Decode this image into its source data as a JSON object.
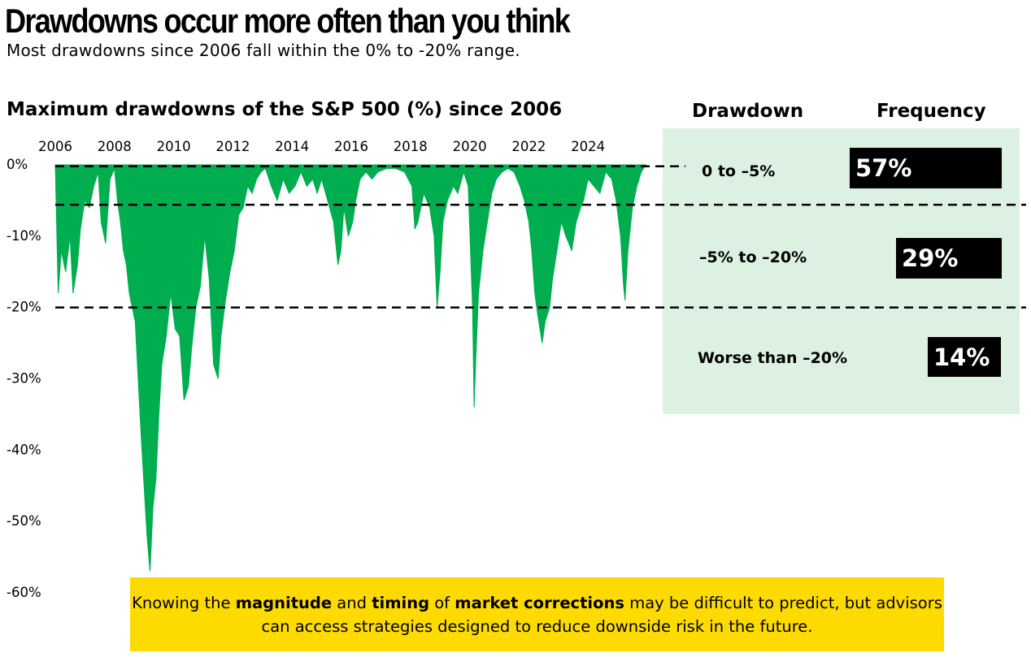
{
  "header": {
    "title": "Drawdowns occur more often than you think",
    "subtitle": "Most drawdowns since 2006 fall within the 0% to -20% range."
  },
  "table": {
    "col_drawdown": "Drawdown",
    "col_frequency": "Frequency",
    "rows": [
      {
        "range": "0 to –5%",
        "frequency": "57%"
      },
      {
        "range": "–5% to –20%",
        "frequency": "29%"
      },
      {
        "range": "Worse than  –20%",
        "frequency": "14%"
      }
    ]
  },
  "callout": {
    "p1": "Knowing the ",
    "b1": "magnitude",
    "p2": " and ",
    "b2": "timing",
    "p3": " of ",
    "b3": "market corrections",
    "p4": " may be difficult to predict, but advisors can access strategies designed to reduce downside risk in the future."
  },
  "colors": {
    "area": "#00ae4f",
    "panel": "#ddf1e2",
    "callout": "#fedb00",
    "freq_box": "#000000"
  },
  "chart_data": {
    "type": "area",
    "title": "Maximum drawdowns of the S&P 500 (%) since 2006",
    "xlabel": "",
    "ylabel": "",
    "xlim": [
      2006,
      2026
    ],
    "ylim": [
      -60,
      0
    ],
    "x_ticks": [
      "2006",
      "2008",
      "2010",
      "2012",
      "2014",
      "2016",
      "2018",
      "2020",
      "2022",
      "2024"
    ],
    "y_ticks": [
      "0%",
      "-10%",
      "-20%",
      "-30%",
      "-40%",
      "-50%",
      "-60%"
    ],
    "reference_lines": [
      -0.2,
      -5.6,
      -20
    ],
    "series": [
      {
        "x": [
          2006.0,
          2006.1,
          2006.2,
          2006.35,
          2006.5,
          2006.6,
          2006.75,
          2006.85,
          2007.0,
          2007.15,
          2007.3,
          2007.45,
          2007.55,
          2007.7,
          2007.85,
          2008.0,
          2008.1,
          2008.2,
          2008.3,
          2008.4,
          2008.5,
          2008.6,
          2008.7,
          2008.8,
          2008.9,
          2009.0,
          2009.1,
          2009.2,
          2009.3,
          2009.4,
          2009.5,
          2009.6,
          2009.75,
          2009.9,
          2010.05,
          2010.2,
          2010.35,
          2010.5,
          2010.6,
          2010.75,
          2010.9,
          2011.05,
          2011.2,
          2011.35,
          2011.5,
          2011.6,
          2011.75,
          2011.9,
          2012.05,
          2012.2,
          2012.35,
          2012.5,
          2012.65,
          2012.8,
          2012.95,
          2013.1,
          2013.3,
          2013.5,
          2013.7,
          2013.9,
          2014.1,
          2014.3,
          2014.5,
          2014.7,
          2014.85,
          2015.0,
          2015.2,
          2015.4,
          2015.55,
          2015.65,
          2015.75,
          2015.9,
          2016.05,
          2016.15,
          2016.3,
          2016.5,
          2016.7,
          2016.9,
          2017.2,
          2017.5,
          2017.8,
          2018.05,
          2018.15,
          2018.25,
          2018.45,
          2018.65,
          2018.8,
          2018.9,
          2019.0,
          2019.1,
          2019.25,
          2019.45,
          2019.6,
          2019.8,
          2019.95,
          2020.1,
          2020.15,
          2020.2,
          2020.3,
          2020.45,
          2020.6,
          2020.75,
          2020.9,
          2021.1,
          2021.3,
          2021.5,
          2021.7,
          2021.85,
          2022.0,
          2022.1,
          2022.2,
          2022.3,
          2022.45,
          2022.55,
          2022.7,
          2022.8,
          2022.95,
          2023.1,
          2023.25,
          2023.45,
          2023.6,
          2023.75,
          2023.85,
          2024.0,
          2024.2,
          2024.4,
          2024.6,
          2024.8,
          2024.95,
          2025.1,
          2025.2,
          2025.25,
          2025.35,
          2025.5,
          2025.65,
          2025.8,
          2025.95
        ],
        "y": [
          0,
          -18,
          -12,
          -15,
          -10,
          -18,
          -14,
          -9,
          -5,
          -6,
          -3,
          -1,
          -8,
          -11,
          -2,
          -0.5,
          -5,
          -8,
          -12,
          -14,
          -18,
          -20,
          -22,
          -30,
          -38,
          -45,
          -52,
          -57,
          -48,
          -44,
          -35,
          -28,
          -24,
          -18,
          -23,
          -24,
          -33,
          -31,
          -26,
          -20,
          -17,
          -10,
          -16,
          -28,
          -30,
          -24,
          -19,
          -15,
          -12,
          -7,
          -6,
          -3,
          -4,
          -2,
          -1,
          -0.5,
          -3,
          -5,
          -2,
          -4,
          -3,
          -1,
          -3,
          -2,
          -4,
          -2,
          -5,
          -8,
          -14,
          -12,
          -6,
          -10,
          -8,
          -5,
          -2,
          -1,
          -2,
          -1,
          -0.5,
          -0.5,
          -1,
          -3,
          -9,
          -8,
          -4,
          -6,
          -10,
          -20,
          -15,
          -8,
          -5,
          -3,
          -4,
          -1,
          -3,
          -20,
          -34,
          -28,
          -18,
          -12,
          -8,
          -4,
          -2,
          -1,
          -0.5,
          -1,
          -3,
          -5,
          -8,
          -12,
          -18,
          -21,
          -25,
          -22,
          -20,
          -16,
          -12,
          -8,
          -10,
          -12,
          -8,
          -6,
          -5,
          -2,
          -3,
          -4,
          -1,
          -2,
          -5,
          -10,
          -17,
          -19,
          -12,
          -6,
          -3,
          -1,
          0
        ]
      }
    ]
  }
}
